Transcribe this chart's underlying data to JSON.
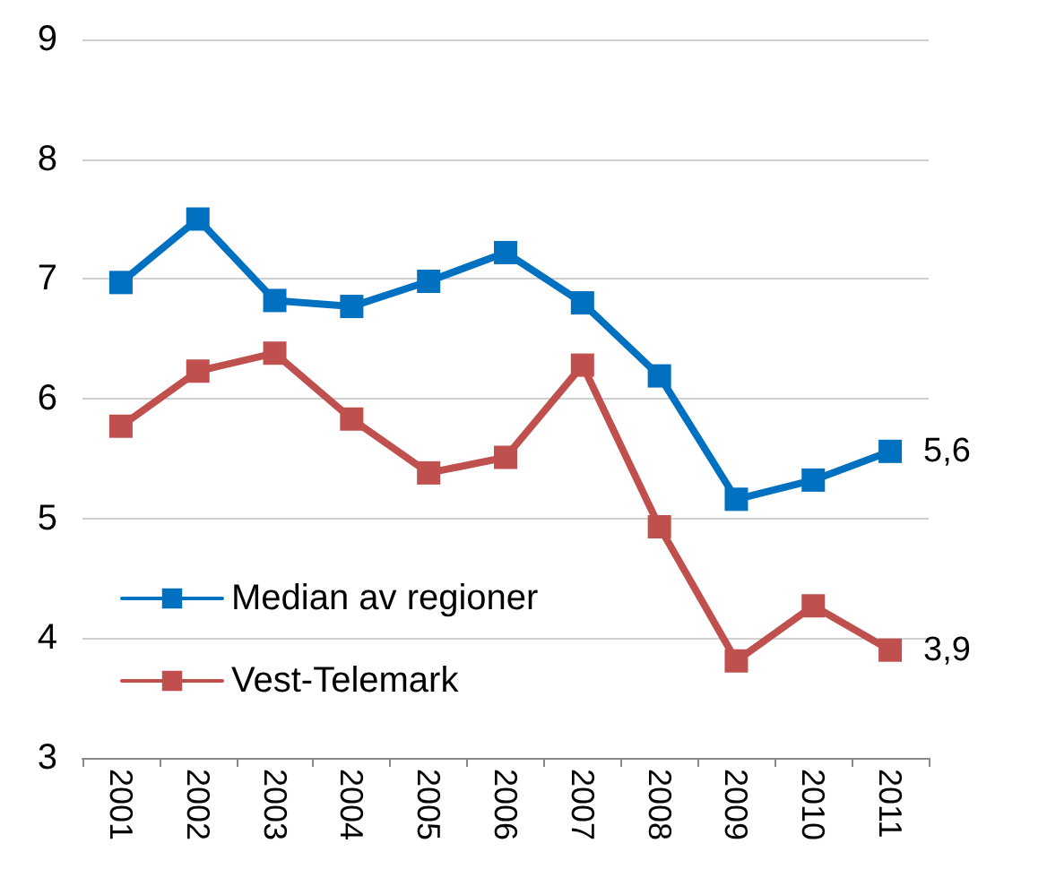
{
  "chart_data": {
    "type": "line",
    "categories": [
      "2001",
      "2002",
      "2003",
      "2004",
      "2005",
      "2006",
      "2007",
      "2008",
      "2009",
      "2010",
      "2011"
    ],
    "series": [
      {
        "name": "Median av regioner",
        "color": "#0070c0",
        "values": [
          6.97,
          7.5,
          6.82,
          6.77,
          6.98,
          7.22,
          6.8,
          6.19,
          5.16,
          5.32,
          5.56
        ],
        "value_labels": [
          null,
          null,
          null,
          null,
          null,
          null,
          null,
          null,
          null,
          null,
          "5,6"
        ]
      },
      {
        "name": "Vest-Telemark",
        "color": "#c0504d",
        "values": [
          5.77,
          6.23,
          6.38,
          5.83,
          5.38,
          5.51,
          6.28,
          4.93,
          3.81,
          4.27,
          3.9
        ],
        "value_labels": [
          null,
          null,
          null,
          null,
          null,
          null,
          null,
          null,
          null,
          null,
          "3,9"
        ]
      }
    ],
    "ylim": [
      3,
      9
    ],
    "yticks": [
      3,
      4,
      5,
      6,
      7,
      8,
      9
    ],
    "grid": "y",
    "legend": "bottom left",
    "marker": "square",
    "line_style": "solid"
  }
}
